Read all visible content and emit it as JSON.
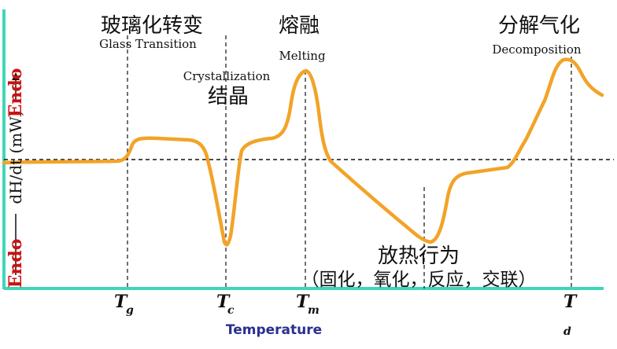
{
  "colors": {
    "curve": "#f2a328",
    "axis": "#3fd6b8",
    "guides": "#111111",
    "xlabel": "#2a2f8f",
    "endo": "#cc1111"
  },
  "labels": {
    "glass_cn": "玻璃化转变",
    "glass_en": "Glass Transition",
    "crystal_en": "Crystallization",
    "crystal_cn": "结晶",
    "melting_cn": "熔融",
    "melting_en": "Melting",
    "decomp_cn": "分解气化",
    "decomp_en": "Decomposition",
    "exo_cn": "放热行为",
    "exo_detail_cn": "（固化，氧化，反应，交联）"
  },
  "ticks": {
    "tg_main": "T",
    "tg_sub": "g",
    "tc_main": "T",
    "tc_sub": "c",
    "tm_main": "T",
    "tm_sub": "m",
    "td_main": "T",
    "td_sub": "d"
  },
  "axes": {
    "xlabel": "Temperature",
    "ylabel_middle": "dH/dt (mW)",
    "endo_top": "Endo",
    "endo_bottom": "Endo"
  }
}
